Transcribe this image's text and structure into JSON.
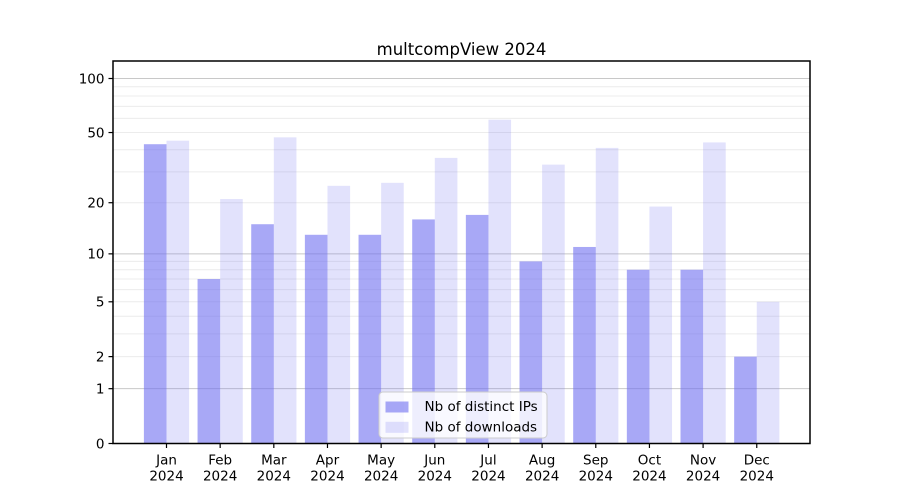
{
  "chart_data": {
    "type": "bar",
    "title": "multcompView 2024",
    "categories": [
      "Jan",
      "Feb",
      "Mar",
      "Apr",
      "May",
      "Jun",
      "Jul",
      "Aug",
      "Sep",
      "Oct",
      "Nov",
      "Dec"
    ],
    "category_year_line": "2024",
    "series": [
      {
        "name": "Nb of distinct IPs",
        "color_hex": "#a8a8f9",
        "color_rgba": "rgba(110,110,240,0.60)",
        "values": [
          43,
          7,
          15,
          13,
          13,
          16,
          17,
          9,
          11,
          8,
          8,
          2
        ]
      },
      {
        "name": "Nb of downloads",
        "color_hex": "#e2e2fc",
        "color_rgba": "rgba(110,110,240,0.20)",
        "values": [
          45,
          21,
          47,
          25,
          26,
          36,
          59,
          33,
          41,
          19,
          44,
          5
        ]
      }
    ],
    "yscale": "log1p",
    "ylim": [
      0,
      125
    ],
    "yticks": [
      0,
      1,
      2,
      5,
      10,
      20,
      50,
      100
    ],
    "grid": true,
    "grid_minor_ticks": [
      2,
      3,
      4,
      5,
      6,
      7,
      8,
      9,
      20,
      30,
      40,
      50,
      60,
      70,
      80,
      90
    ],
    "grid_major_ticks": [
      1,
      10,
      100
    ],
    "legend_position": "lower center"
  },
  "colors": {
    "background": "#ffffff",
    "grid_minor": "#ececec",
    "grid_major": "#c8c8c8",
    "spine": "#000000",
    "tick_text": "#000000",
    "legend_border": "#cccccc",
    "legend_background": "rgba(255,255,255,0.8)"
  }
}
